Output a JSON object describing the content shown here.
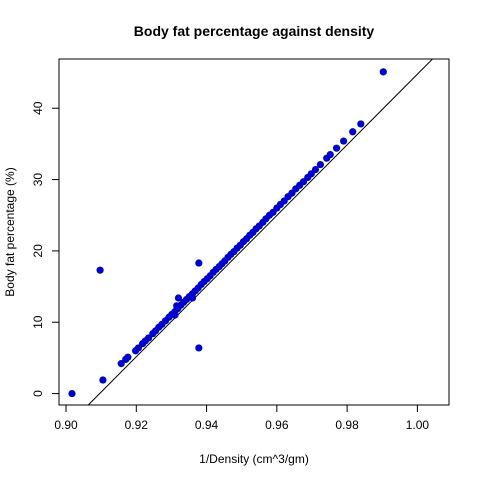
{
  "chart_data": {
    "type": "scatter",
    "title": "Body fat percentage against density",
    "xlabel": "1/Density (cm^3/gm)",
    "ylabel": "Body fat percentage (%)",
    "xlim": [
      0.898,
      1.009
    ],
    "ylim": [
      -1.6,
      46.9
    ],
    "xticks": [
      0.9,
      0.92,
      0.94,
      0.96,
      0.98,
      1.0
    ],
    "xtick_labels": [
      "0.90",
      "0.92",
      "0.94",
      "0.96",
      "0.98",
      "1.00"
    ],
    "yticks": [
      0,
      10,
      20,
      30,
      40
    ],
    "ytick_labels": [
      "0",
      "10",
      "20",
      "30",
      "40"
    ],
    "grid": false,
    "legend": "none",
    "point_color": "#0000cd",
    "reference_line": {
      "slope": 495.04,
      "intercept": -450.27,
      "color": "#000000"
    },
    "points": [
      [
        0.9017,
        0.0
      ],
      [
        0.9105,
        1.9
      ],
      [
        0.9157,
        4.2
      ],
      [
        0.917,
        4.8
      ],
      [
        0.9176,
        5.1
      ],
      [
        0.9198,
        6.0
      ],
      [
        0.9206,
        6.4
      ],
      [
        0.9218,
        7.0
      ],
      [
        0.9226,
        7.4
      ],
      [
        0.9235,
        7.8
      ],
      [
        0.9247,
        8.4
      ],
      [
        0.9255,
        8.8
      ],
      [
        0.9264,
        9.3
      ],
      [
        0.9273,
        9.7
      ],
      [
        0.9283,
        10.2
      ],
      [
        0.9293,
        10.7
      ],
      [
        0.9301,
        11.1
      ],
      [
        0.931,
        11.5
      ],
      [
        0.9318,
        11.9
      ],
      [
        0.9327,
        12.4
      ],
      [
        0.9335,
        12.8
      ],
      [
        0.9343,
        13.2
      ],
      [
        0.9351,
        13.6
      ],
      [
        0.936,
        14.0
      ],
      [
        0.9368,
        14.4
      ],
      [
        0.9376,
        14.8
      ],
      [
        0.9385,
        15.3
      ],
      [
        0.9393,
        15.7
      ],
      [
        0.9402,
        16.1
      ],
      [
        0.941,
        16.5
      ],
      [
        0.9419,
        17.0
      ],
      [
        0.9427,
        17.4
      ],
      [
        0.9436,
        17.8
      ],
      [
        0.9444,
        18.2
      ],
      [
        0.9452,
        18.6
      ],
      [
        0.9461,
        19.1
      ],
      [
        0.9469,
        19.5
      ],
      [
        0.9478,
        19.9
      ],
      [
        0.9487,
        20.4
      ],
      [
        0.9496,
        20.8
      ],
      [
        0.9505,
        21.3
      ],
      [
        0.9514,
        21.7
      ],
      [
        0.9523,
        22.2
      ],
      [
        0.9532,
        22.6
      ],
      [
        0.9541,
        23.1
      ],
      [
        0.955,
        23.5
      ],
      [
        0.956,
        24.0
      ],
      [
        0.9569,
        24.5
      ],
      [
        0.9579,
        25.0
      ],
      [
        0.9589,
        25.4
      ],
      [
        0.96,
        26.0
      ],
      [
        0.961,
        26.5
      ],
      [
        0.9621,
        27.0
      ],
      [
        0.9632,
        27.6
      ],
      [
        0.9643,
        28.1
      ],
      [
        0.9654,
        28.7
      ],
      [
        0.9665,
        29.2
      ],
      [
        0.9676,
        29.7
      ],
      [
        0.9688,
        30.3
      ],
      [
        0.9698,
        30.8
      ],
      [
        0.971,
        31.4
      ],
      [
        0.9724,
        32.1
      ],
      [
        0.9742,
        33.0
      ],
      [
        0.9752,
        33.5
      ],
      [
        0.977,
        34.4
      ],
      [
        0.979,
        35.4
      ],
      [
        0.9816,
        36.7
      ],
      [
        0.9839,
        37.8
      ],
      [
        0.9903,
        45.1
      ],
      [
        0.9097,
        17.3
      ],
      [
        0.9378,
        18.3
      ],
      [
        0.9378,
        6.4
      ],
      [
        0.932,
        13.4
      ],
      [
        0.931,
        11.0
      ],
      [
        0.9315,
        12.3
      ],
      [
        0.936,
        13.4
      ]
    ]
  }
}
